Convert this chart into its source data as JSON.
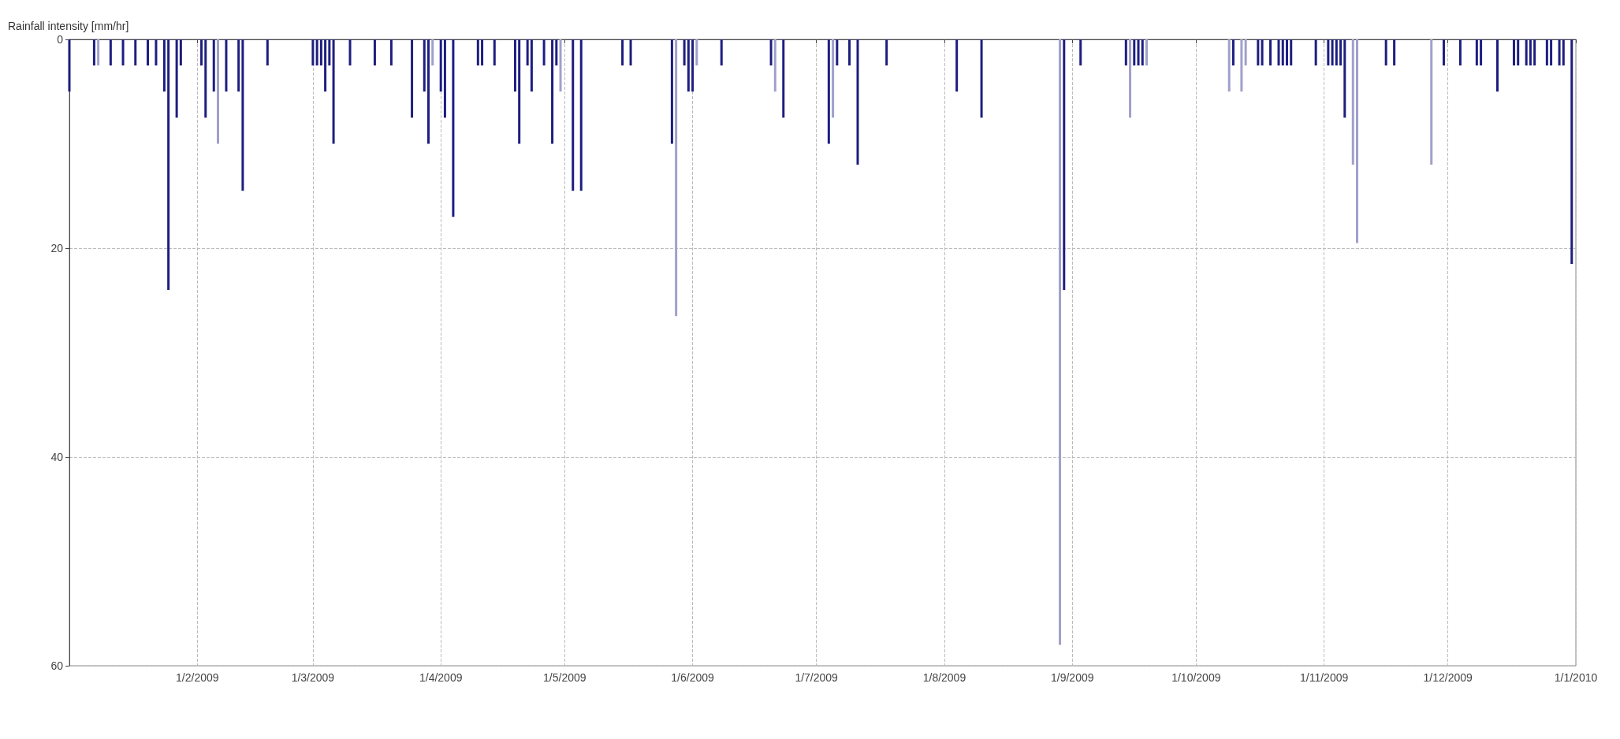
{
  "chart_data": {
    "type": "bar",
    "ylabel": "Rainfall intensity [mm/hr]",
    "x": [
      "2009-01-01",
      "2009-01-07",
      "2009-01-08",
      "2009-01-11",
      "2009-01-14",
      "2009-01-17",
      "2009-01-20",
      "2009-01-22",
      "2009-01-24",
      "2009-01-25",
      "2009-01-27",
      "2009-01-28",
      "2009-02-02",
      "2009-02-03",
      "2009-02-05",
      "2009-02-06",
      "2009-02-08",
      "2009-02-11",
      "2009-02-12",
      "2009-02-18",
      "2009-03-01",
      "2009-03-02",
      "2009-03-03",
      "2009-03-04",
      "2009-03-05",
      "2009-03-06",
      "2009-03-10",
      "2009-03-16",
      "2009-03-20",
      "2009-03-25",
      "2009-03-28",
      "2009-03-29",
      "2009-03-30",
      "2009-04-01",
      "2009-04-02",
      "2009-04-04",
      "2009-04-10",
      "2009-04-11",
      "2009-04-14",
      "2009-04-19",
      "2009-04-20",
      "2009-04-22",
      "2009-04-23",
      "2009-04-26",
      "2009-04-28",
      "2009-04-29",
      "2009-04-30",
      "2009-05-03",
      "2009-05-05",
      "2009-05-15",
      "2009-05-17",
      "2009-05-27",
      "2009-05-28",
      "2009-05-30",
      "2009-05-31",
      "2009-06-01",
      "2009-06-02",
      "2009-06-08",
      "2009-06-20",
      "2009-06-21",
      "2009-06-23",
      "2009-07-04",
      "2009-07-05",
      "2009-07-06",
      "2009-07-09",
      "2009-07-11",
      "2009-07-18",
      "2009-08-04",
      "2009-08-10",
      "2009-08-29",
      "2009-08-30",
      "2009-09-03",
      "2009-09-14",
      "2009-09-15",
      "2009-09-16",
      "2009-09-17",
      "2009-09-18",
      "2009-09-19",
      "2009-10-09",
      "2009-10-10",
      "2009-10-12",
      "2009-10-13",
      "2009-10-16",
      "2009-10-17",
      "2009-10-19",
      "2009-10-21",
      "2009-10-22",
      "2009-10-23",
      "2009-10-24",
      "2009-10-30",
      "2009-11-02",
      "2009-11-03",
      "2009-11-04",
      "2009-11-05",
      "2009-11-06",
      "2009-11-08",
      "2009-11-09",
      "2009-11-16",
      "2009-11-18",
      "2009-11-27",
      "2009-11-30",
      "2009-12-04",
      "2009-12-08",
      "2009-12-09",
      "2009-12-13",
      "2009-12-17",
      "2009-12-18",
      "2009-12-20",
      "2009-12-21",
      "2009-12-22",
      "2009-12-25",
      "2009-12-26",
      "2009-12-28",
      "2009-12-29",
      "2009-12-31"
    ],
    "values": [
      5,
      2.5,
      2.5,
      2.5,
      2.5,
      2.5,
      2.5,
      2.5,
      5,
      24,
      7.5,
      2.5,
      2.5,
      7.5,
      5,
      10,
      5,
      5,
      14.5,
      2.5,
      2.5,
      2.5,
      2.5,
      5,
      2.5,
      10,
      2.5,
      2.5,
      2.5,
      7.5,
      5,
      10,
      2.5,
      5,
      7.5,
      17,
      2.5,
      2.5,
      2.5,
      5,
      10,
      2.5,
      5,
      2.5,
      10,
      2.5,
      5,
      14.5,
      14.5,
      2.5,
      2.5,
      10,
      26.5,
      2.5,
      5,
      5,
      2.5,
      2.5,
      2.5,
      5,
      7.5,
      10,
      7.5,
      2.5,
      2.5,
      12,
      2.5,
      5,
      7.5,
      58,
      24,
      2.5,
      2.5,
      7.5,
      2.5,
      2.5,
      2.5,
      2.5,
      5,
      2.5,
      5,
      2.5,
      2.5,
      2.5,
      2.5,
      2.5,
      2.5,
      2.5,
      2.5,
      2.5,
      2.5,
      2.5,
      2.5,
      2.5,
      7.5,
      12,
      19.5,
      2.5,
      2.5,
      12,
      2.5,
      2.5,
      2.5,
      2.5,
      5,
      2.5,
      2.5,
      2.5,
      2.5,
      2.5,
      2.5,
      2.5,
      2.5,
      2.5,
      21.5
    ],
    "colors": [
      "#1e1e80",
      "#1e1e80",
      "#a0a0cc",
      "#1e1e80",
      "#1e1e80",
      "#1e1e80",
      "#1e1e80",
      "#1e1e80",
      "#1e1e80",
      "#1e1e80",
      "#1e1e80",
      "#1e1e80",
      "#1e1e80",
      "#1e1e80",
      "#1e1e80",
      "#a0a0cc",
      "#1e1e80",
      "#1e1e80",
      "#1e1e80",
      "#1e1e80",
      "#1e1e80",
      "#1e1e80",
      "#1e1e80",
      "#1e1e80",
      "#1e1e80",
      "#1e1e80",
      "#1e1e80",
      "#1e1e80",
      "#1e1e80",
      "#1e1e80",
      "#1e1e80",
      "#1e1e80",
      "#a0a0cc",
      "#1e1e80",
      "#1e1e80",
      "#1e1e80",
      "#1e1e80",
      "#1e1e80",
      "#1e1e80",
      "#1e1e80",
      "#1e1e80",
      "#1e1e80",
      "#1e1e80",
      "#1e1e80",
      "#1e1e80",
      "#1e1e80",
      "#a0a0cc",
      "#1e1e80",
      "#1e1e80",
      "#1e1e80",
      "#1e1e80",
      "#1e1e80",
      "#a0a0cc",
      "#1e1e80",
      "#1e1e80",
      "#1e1e80",
      "#a0a0cc",
      "#1e1e80",
      "#1e1e80",
      "#a0a0cc",
      "#1e1e80",
      "#1e1e80",
      "#a0a0cc",
      "#1e1e80",
      "#1e1e80",
      "#1e1e80",
      "#1e1e80",
      "#1e1e80",
      "#1e1e80",
      "#a0a0cc",
      "#1e1e80",
      "#1e1e80",
      "#1e1e80",
      "#a0a0cc",
      "#1e1e80",
      "#1e1e80",
      "#1e1e80",
      "#a0a0cc",
      "#a0a0cc",
      "#1e1e80",
      "#a0a0cc",
      "#a0a0cc",
      "#1e1e80",
      "#1e1e80",
      "#1e1e80",
      "#1e1e80",
      "#1e1e80",
      "#1e1e80",
      "#1e1e80",
      "#1e1e80",
      "#1e1e80",
      "#1e1e80",
      "#1e1e80",
      "#1e1e80",
      "#1e1e80",
      "#a0a0cc",
      "#a0a0cc",
      "#1e1e80",
      "#1e1e80",
      "#a0a0cc",
      "#1e1e80",
      "#1e1e80",
      "#1e1e80",
      "#1e1e80",
      "#1e1e80",
      "#1e1e80",
      "#1e1e80",
      "#1e1e80",
      "#1e1e80",
      "#1e1e80",
      "#1e1e80",
      "#1e1e80",
      "#1e1e80",
      "#1e1e80",
      "#1e1e80"
    ],
    "xlim": [
      "2009-01-01",
      "2010-01-01"
    ],
    "xticks": [
      {
        "value": "2009-02-01",
        "label": "1/2/2009"
      },
      {
        "value": "2009-03-01",
        "label": "1/3/2009"
      },
      {
        "value": "2009-04-01",
        "label": "1/4/2009"
      },
      {
        "value": "2009-05-01",
        "label": "1/5/2009"
      },
      {
        "value": "2009-06-01",
        "label": "1/6/2009"
      },
      {
        "value": "2009-07-01",
        "label": "1/7/2009"
      },
      {
        "value": "2009-08-01",
        "label": "1/8/2009"
      },
      {
        "value": "2009-09-01",
        "label": "1/9/2009"
      },
      {
        "value": "2009-10-01",
        "label": "1/10/2009"
      },
      {
        "value": "2009-11-01",
        "label": "1/11/2009"
      },
      {
        "value": "2009-12-01",
        "label": "1/12/2009"
      },
      {
        "value": "2010-01-01",
        "label": "1/1/2010"
      }
    ],
    "ylim": [
      60,
      0
    ],
    "yticks": [
      0,
      20,
      40,
      60
    ],
    "grid": true
  }
}
